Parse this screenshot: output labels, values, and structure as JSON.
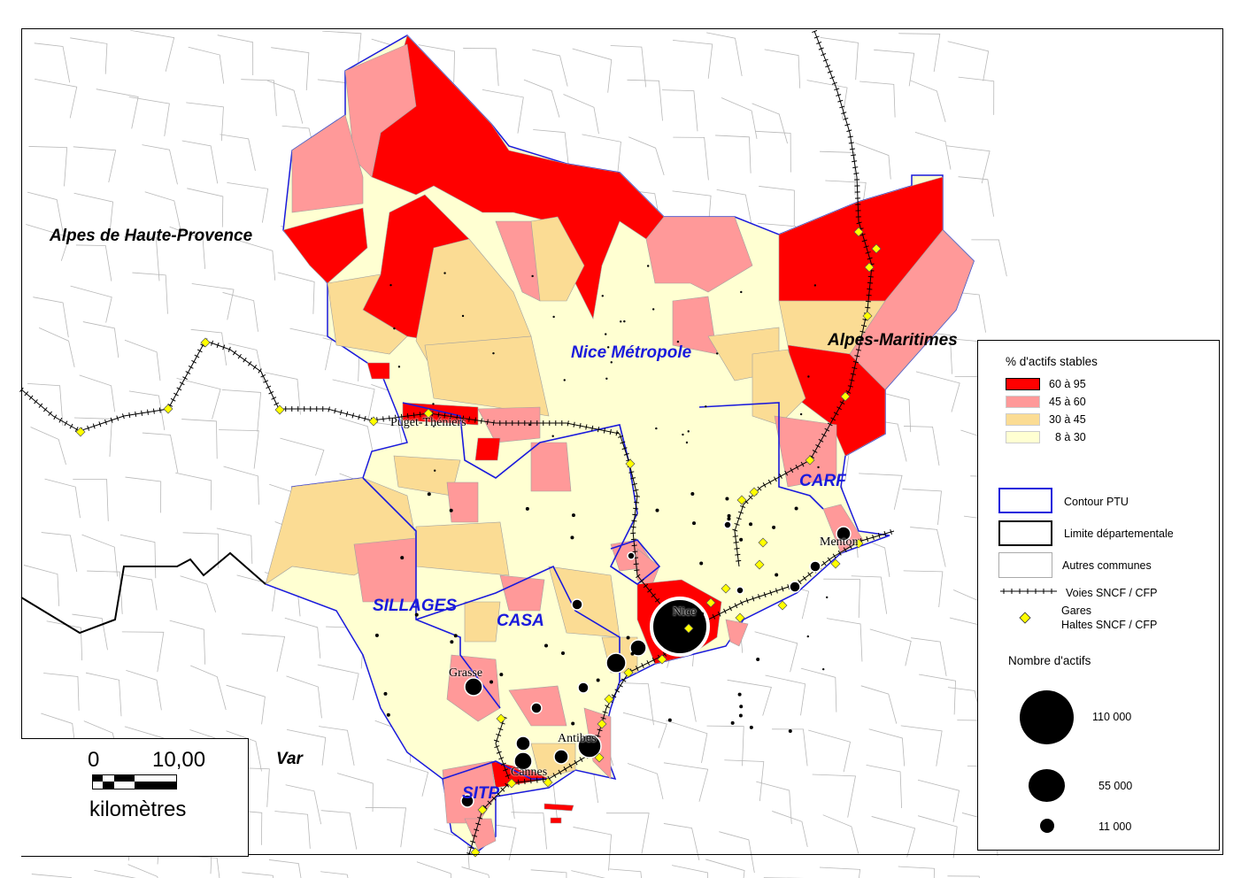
{
  "colors": {
    "class_60_95": "#ff0000",
    "class_45_60": "#ff9999",
    "class_30_45": "#fbdc94",
    "class_8_30": "#ffffd2",
    "ptu_contour": "#1a1adc",
    "station": "#ffff00"
  },
  "regions": {
    "ahp": "Alpes de Haute-Provence",
    "am": "Alpes-Maritimes",
    "var": "Var"
  },
  "ptu": {
    "nice": "Nice Métropole",
    "carf": "CARF",
    "sillages": "SILLAGES",
    "casa": "CASA",
    "sitp": "SITP"
  },
  "cities": {
    "puget": "Puget-Théniers",
    "nice": "Nice",
    "menton": "Menton",
    "grasse": "Grasse",
    "antibes": "Antibes",
    "cannes": "Cannes"
  },
  "legend": {
    "title": "% d'actifs stables",
    "classes": [
      "60 à 95",
      "45 à 60",
      "30 à 45",
      "8 à 30"
    ],
    "contour_ptu": "Contour PTU",
    "limite": "Limite départementale",
    "autres": "Autres communes",
    "voies": "Voies SNCF / CFP",
    "gares_1": "Gares",
    "gares_2": "Haltes SNCF / CFP",
    "size_title": "Nombre d'actifs",
    "sizes": [
      "110 000",
      "55 000",
      "11 000"
    ]
  },
  "scale": {
    "zero": "0",
    "max": "10,00",
    "unit": "kilomètres"
  }
}
